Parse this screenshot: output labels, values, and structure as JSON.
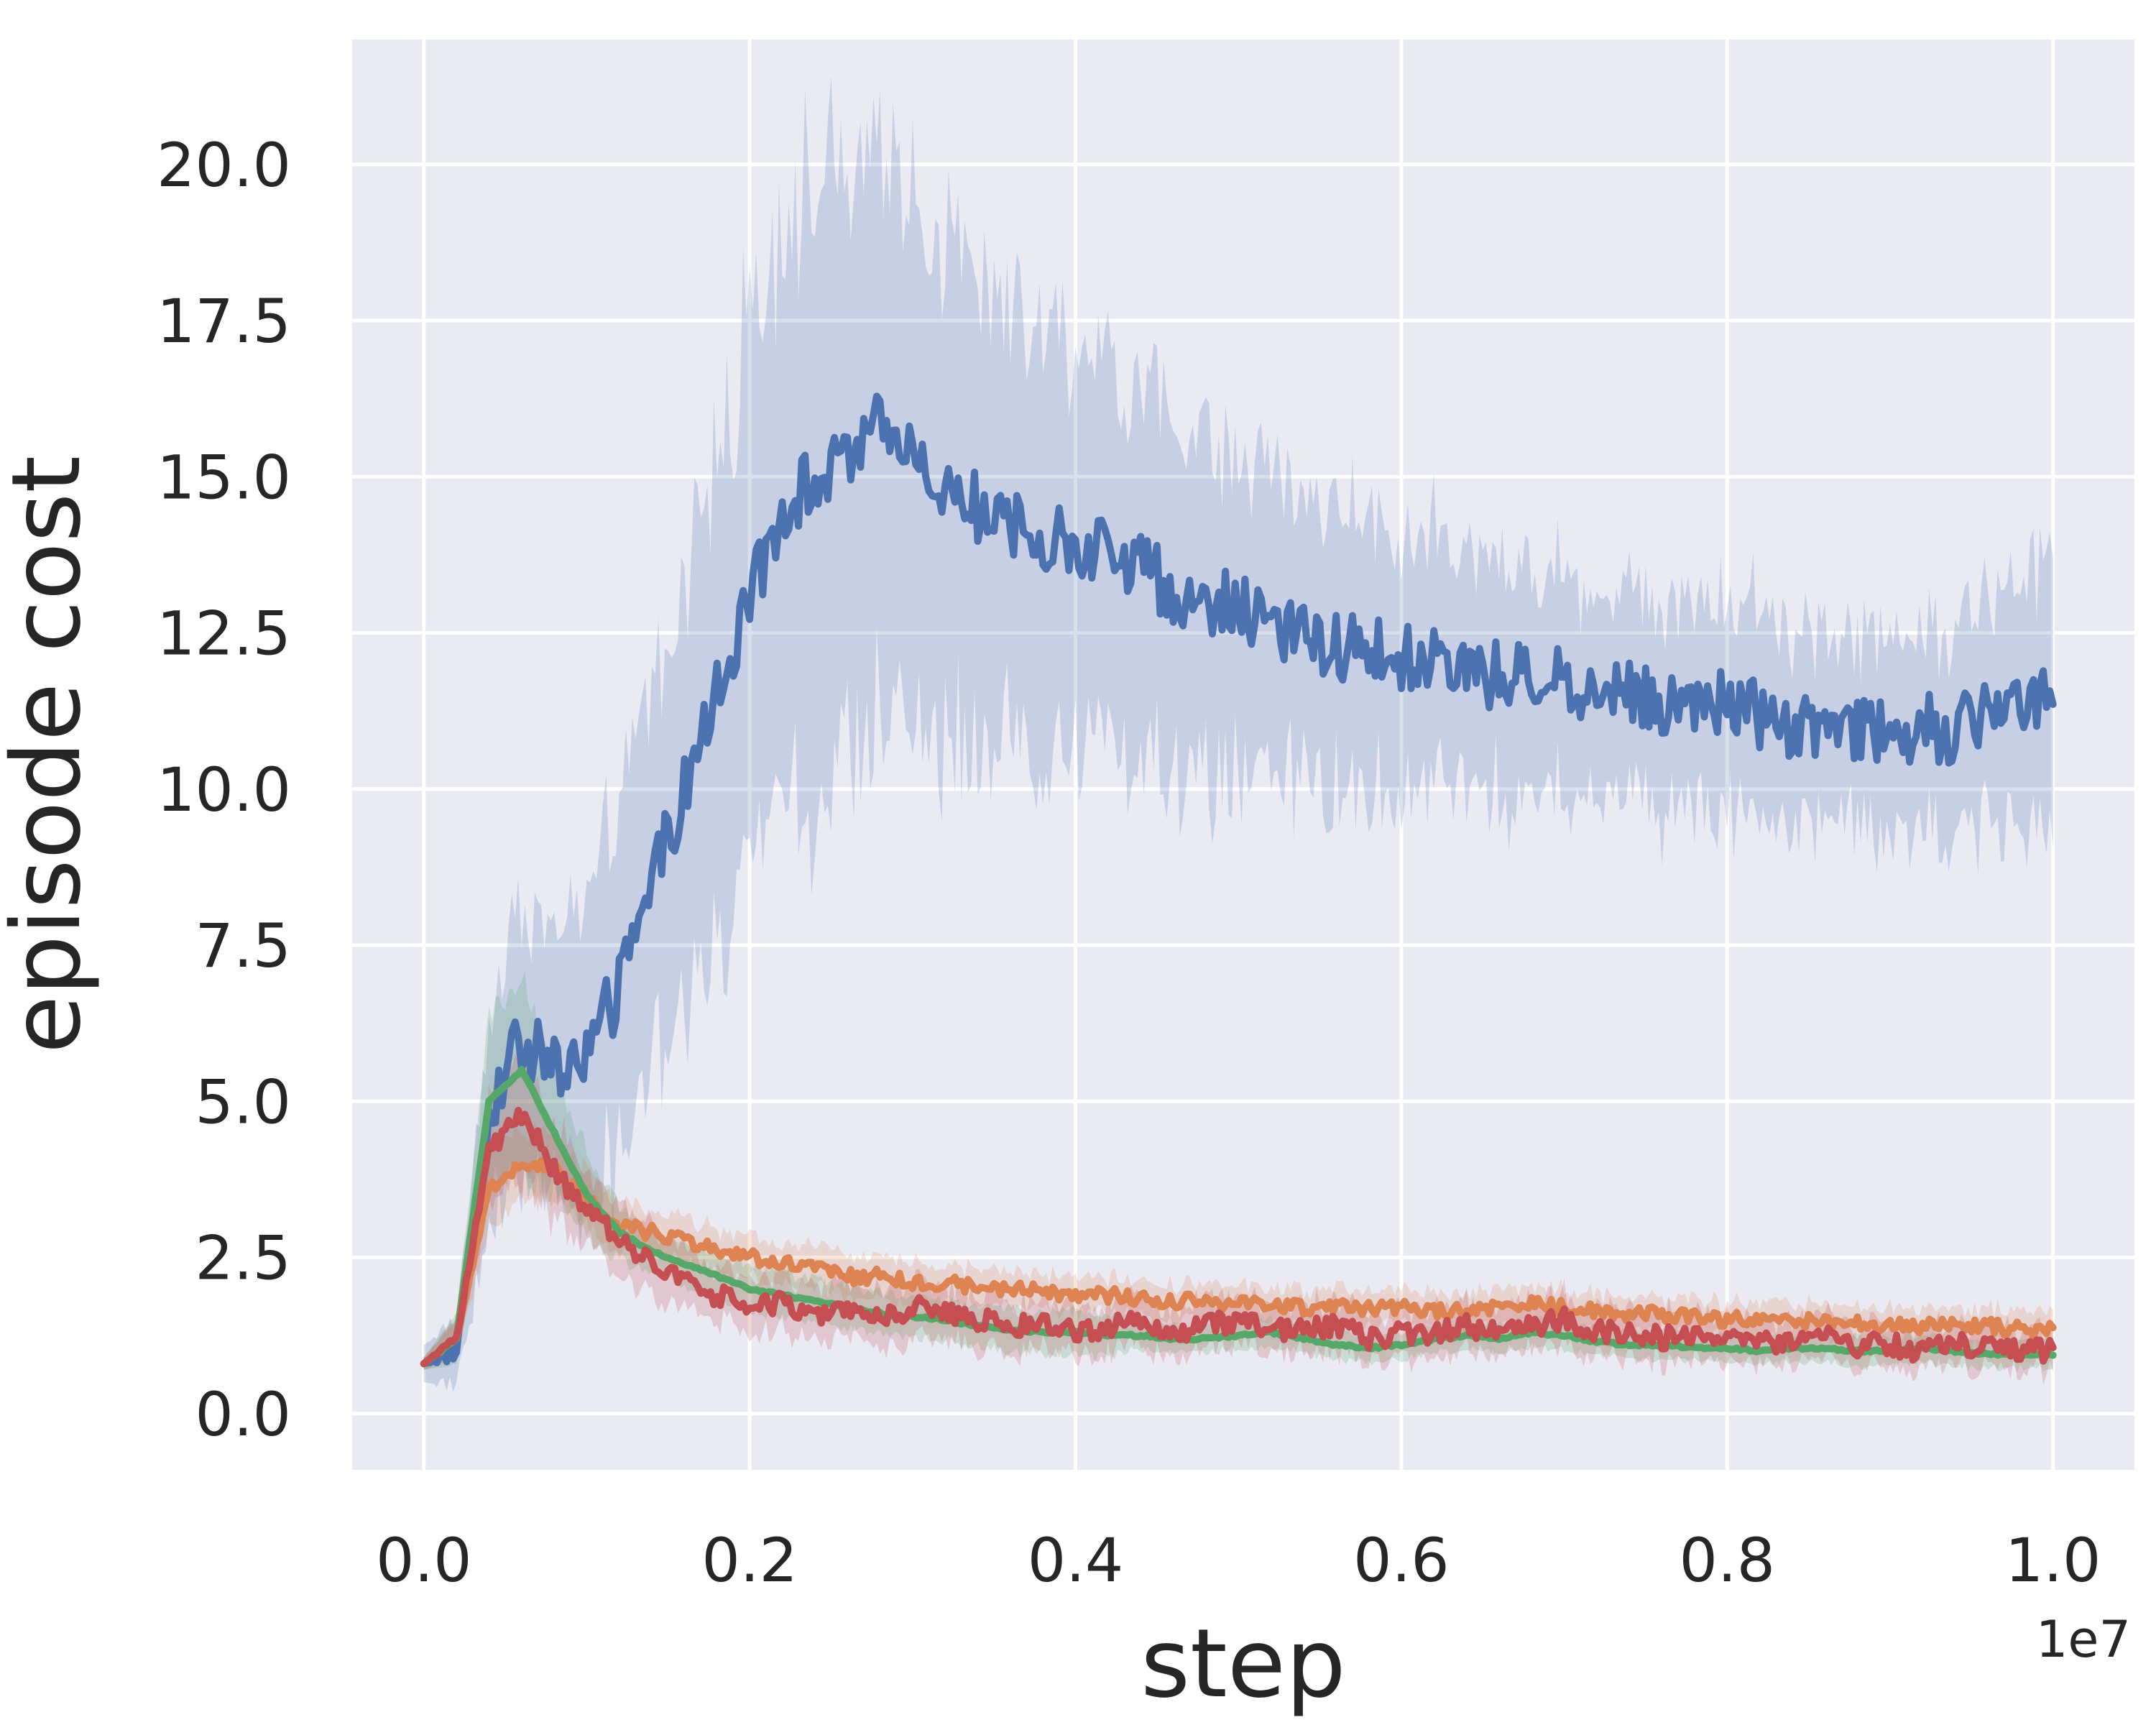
{
  "chart_data": {
    "type": "line",
    "title": "",
    "xlabel": "step",
    "ylabel": "episode cost",
    "x_offset_label": "1e7",
    "xlim": [
      -0.11,
      2.625
    ],
    "ylim": [
      -0.9,
      22.0
    ],
    "x_ticks": [
      0.0,
      0.5,
      1.0,
      1.5,
      2.0,
      2.5
    ],
    "x_tick_labels": [
      "0.0",
      "0.2",
      "0.4",
      "0.6",
      "0.8",
      "1.0"
    ],
    "y_ticks": [
      0.0,
      2.5,
      5.0,
      7.5,
      10.0,
      12.5,
      15.0,
      17.5,
      20.0
    ],
    "y_tick_labels": [
      "0.0",
      "2.5",
      "5.0",
      "7.5",
      "10.0",
      "12.5",
      "15.0",
      "17.5",
      "20.0"
    ],
    "grid": true,
    "legend": "none",
    "background": "#eaeaf2",
    "series": [
      {
        "color": "#4c72b0",
        "band_color": "#4c72b0",
        "x": [
          0.0,
          0.05,
          0.1,
          0.15,
          0.2,
          0.25,
          0.3,
          0.35,
          0.4,
          0.45,
          0.5,
          0.55,
          0.6,
          0.65,
          0.7,
          0.75,
          0.8,
          0.85,
          0.9,
          0.95,
          1.0,
          1.05,
          1.1,
          1.15,
          1.2,
          1.25,
          1.3,
          1.35,
          1.4,
          1.45,
          1.5,
          1.55,
          1.6,
          1.65,
          1.7,
          1.75,
          1.8,
          1.85,
          1.9,
          1.95,
          2.0,
          2.05,
          2.1,
          2.15,
          2.2,
          2.25,
          2.3,
          2.35,
          2.4,
          2.45,
          2.5
        ],
        "y": [
          0.8,
          1.0,
          4.8,
          6.0,
          5.5,
          5.8,
          6.8,
          8.5,
          10.0,
          11.5,
          13.0,
          14.5,
          15.0,
          15.2,
          15.8,
          15.5,
          14.8,
          14.5,
          14.2,
          14.0,
          14.0,
          13.8,
          13.5,
          13.2,
          13.0,
          12.9,
          12.6,
          12.4,
          12.3,
          12.2,
          12.1,
          12.0,
          11.9,
          11.8,
          11.8,
          11.7,
          11.6,
          11.5,
          11.4,
          11.5,
          11.4,
          11.2,
          11.0,
          11.1,
          11.0,
          10.9,
          11.0,
          10.9,
          11.2,
          11.3,
          11.8
        ],
        "band": [
          0.3,
          0.5,
          1.5,
          2.0,
          1.8,
          2.2,
          2.5,
          2.8,
          3.0,
          3.5,
          4.0,
          4.0,
          4.5,
          4.2,
          4.0,
          3.8,
          3.5,
          3.3,
          3.0,
          3.0,
          2.8,
          2.7,
          2.6,
          2.5,
          2.4,
          2.3,
          2.2,
          2.1,
          2.0,
          2.0,
          1.9,
          1.8,
          1.7,
          1.7,
          1.6,
          1.6,
          1.5,
          1.5,
          1.5,
          1.5,
          1.5,
          1.5,
          1.4,
          1.4,
          1.4,
          1.4,
          1.4,
          1.5,
          1.6,
          1.7,
          1.9
        ],
        "noise": 0.55
      },
      {
        "color": "#dd8452",
        "band_color": "#dd8452",
        "x": [
          0.0,
          0.05,
          0.1,
          0.15,
          0.2,
          0.25,
          0.3,
          0.35,
          0.4,
          0.45,
          0.5,
          0.55,
          0.6,
          0.65,
          0.7,
          0.75,
          0.8,
          0.85,
          0.9,
          0.95,
          1.0,
          1.05,
          1.1,
          1.15,
          1.2,
          1.25,
          1.3,
          1.35,
          1.4,
          1.45,
          1.5,
          1.55,
          1.6,
          1.65,
          1.7,
          1.75,
          1.8,
          1.85,
          1.9,
          1.95,
          2.0,
          2.05,
          2.1,
          2.15,
          2.2,
          2.25,
          2.3,
          2.35,
          2.4,
          2.45,
          2.5
        ],
        "y": [
          0.8,
          1.2,
          3.6,
          4.0,
          3.9,
          3.4,
          3.0,
          2.9,
          2.8,
          2.6,
          2.5,
          2.4,
          2.3,
          2.2,
          2.2,
          2.1,
          2.1,
          2.0,
          2.0,
          1.95,
          1.9,
          1.9,
          1.85,
          1.8,
          1.8,
          1.75,
          1.75,
          1.7,
          1.7,
          1.7,
          1.7,
          1.65,
          1.65,
          1.7,
          1.75,
          1.7,
          1.65,
          1.6,
          1.6,
          1.55,
          1.5,
          1.5,
          1.5,
          1.45,
          1.45,
          1.4,
          1.4,
          1.4,
          1.4,
          1.35,
          1.35
        ],
        "band": [
          0.1,
          0.3,
          0.6,
          0.5,
          0.5,
          0.4,
          0.35,
          0.3,
          0.3,
          0.3,
          0.3,
          0.3,
          0.3,
          0.3,
          0.3,
          0.3,
          0.25,
          0.25,
          0.25,
          0.25,
          0.25,
          0.25,
          0.25,
          0.25,
          0.25,
          0.25,
          0.25,
          0.25,
          0.25,
          0.25,
          0.25,
          0.25,
          0.25,
          0.25,
          0.25,
          0.25,
          0.25,
          0.25,
          0.25,
          0.25,
          0.25,
          0.25,
          0.25,
          0.25,
          0.25,
          0.25,
          0.25,
          0.25,
          0.25,
          0.25,
          0.25
        ],
        "noise": 0.12
      },
      {
        "color": "#55a868",
        "band_color": "#55a868",
        "x": [
          0.0,
          0.05,
          0.1,
          0.15,
          0.2,
          0.25,
          0.3,
          0.35,
          0.4,
          0.45,
          0.5,
          0.55,
          0.6,
          0.65,
          0.7,
          0.75,
          0.8,
          0.85,
          0.9,
          0.95,
          1.0,
          1.05,
          1.1,
          1.15,
          1.2,
          1.25,
          1.3,
          1.35,
          1.4,
          1.45,
          1.5,
          1.55,
          1.6,
          1.65,
          1.7,
          1.75,
          1.8,
          1.85,
          1.9,
          1.95,
          2.0,
          2.05,
          2.1,
          2.15,
          2.2,
          2.25,
          2.3,
          2.35,
          2.4,
          2.45,
          2.5
        ],
        "y": [
          0.8,
          1.2,
          5.0,
          5.5,
          4.5,
          3.5,
          2.9,
          2.6,
          2.4,
          2.2,
          2.0,
          1.9,
          1.8,
          1.7,
          1.6,
          1.55,
          1.5,
          1.4,
          1.35,
          1.3,
          1.3,
          1.25,
          1.25,
          1.2,
          1.2,
          1.25,
          1.3,
          1.2,
          1.1,
          1.05,
          1.1,
          1.2,
          1.25,
          1.2,
          1.3,
          1.25,
          1.15,
          1.1,
          1.1,
          1.05,
          1.05,
          1.0,
          1.05,
          1.05,
          1.0,
          1.0,
          1.05,
          1.0,
          0.95,
          0.95,
          0.95
        ],
        "band": [
          0.1,
          0.4,
          1.2,
          1.4,
          0.9,
          0.6,
          0.4,
          0.3,
          0.3,
          0.3,
          0.3,
          0.3,
          0.3,
          0.3,
          0.3,
          0.3,
          0.3,
          0.3,
          0.3,
          0.3,
          0.3,
          0.3,
          0.2,
          0.2,
          0.2,
          0.2,
          0.2,
          0.2,
          0.2,
          0.2,
          0.2,
          0.2,
          0.2,
          0.2,
          0.2,
          0.2,
          0.2,
          0.2,
          0.2,
          0.2,
          0.2,
          0.2,
          0.2,
          0.2,
          0.2,
          0.2,
          0.2,
          0.2,
          0.2,
          0.2,
          0.2
        ],
        "noise": 0.02
      },
      {
        "color": "#c44e52",
        "band_color": "#c44e52",
        "x": [
          0.0,
          0.05,
          0.1,
          0.15,
          0.2,
          0.25,
          0.3,
          0.35,
          0.4,
          0.45,
          0.5,
          0.55,
          0.6,
          0.65,
          0.7,
          0.75,
          0.8,
          0.85,
          0.9,
          0.95,
          1.0,
          1.05,
          1.1,
          1.15,
          1.2,
          1.25,
          1.3,
          1.35,
          1.4,
          1.45,
          1.5,
          1.55,
          1.6,
          1.65,
          1.7,
          1.75,
          1.8,
          1.85,
          1.9,
          1.95,
          2.0,
          2.05,
          2.1,
          2.15,
          2.2,
          2.25,
          2.3,
          2.35,
          2.4,
          2.45,
          2.5
        ],
        "y": [
          0.8,
          1.2,
          4.2,
          4.8,
          3.9,
          3.2,
          2.8,
          2.4,
          2.1,
          1.9,
          1.7,
          1.8,
          1.6,
          1.6,
          1.5,
          1.7,
          1.6,
          1.5,
          1.4,
          1.4,
          1.3,
          1.4,
          1.5,
          1.3,
          1.4,
          1.5,
          1.3,
          1.4,
          1.4,
          1.2,
          1.3,
          1.3,
          1.4,
          1.3,
          1.4,
          1.5,
          1.3,
          1.3,
          1.2,
          1.3,
          1.2,
          1.1,
          1.2,
          1.2,
          1.1,
          1.1,
          1.0,
          1.1,
          1.1,
          1.0,
          1.0
        ],
        "band": [
          0.1,
          0.3,
          0.8,
          0.9,
          0.7,
          0.5,
          0.5,
          0.5,
          0.4,
          0.4,
          0.4,
          0.4,
          0.4,
          0.4,
          0.4,
          0.4,
          0.4,
          0.4,
          0.35,
          0.35,
          0.35,
          0.35,
          0.35,
          0.35,
          0.35,
          0.35,
          0.35,
          0.35,
          0.35,
          0.35,
          0.35,
          0.35,
          0.35,
          0.35,
          0.35,
          0.35,
          0.35,
          0.35,
          0.35,
          0.35,
          0.35,
          0.35,
          0.3,
          0.3,
          0.3,
          0.3,
          0.3,
          0.3,
          0.3,
          0.3,
          0.3
        ],
        "noise": 0.18
      }
    ]
  }
}
